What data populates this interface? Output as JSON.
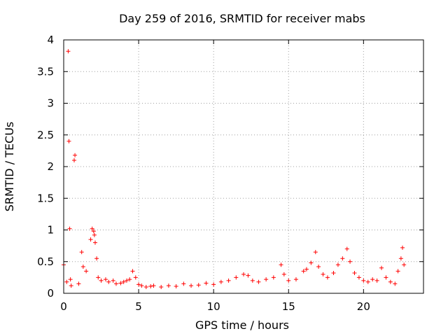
{
  "chart_data": {
    "type": "scatter",
    "title": "Day 259 of 2016, SRMTID for receiver mabs",
    "xlabel": "GPS time / hours",
    "ylabel": "SRMTID / TECUs",
    "xlim": [
      0,
      24
    ],
    "ylim": [
      0,
      4
    ],
    "x_ticks": [
      "0",
      "5",
      "10",
      "15",
      "20"
    ],
    "y_ticks": [
      "0",
      "0.5",
      "1",
      "1.5",
      "2",
      "2.5",
      "3",
      "3.5",
      "4"
    ],
    "grid": true,
    "marker": "+",
    "colors": {
      "series": "#ff0000",
      "grid": "#a0a0a0",
      "axis": "#000000"
    },
    "series": [
      {
        "name": "SRMTID",
        "x": [
          0.0,
          0.2,
          0.3,
          0.35,
          0.4,
          0.45,
          0.5,
          0.7,
          0.75,
          1.0,
          1.2,
          1.3,
          1.5,
          1.8,
          1.9,
          2.0,
          2.05,
          2.1,
          2.2,
          2.3,
          2.5,
          2.8,
          3.0,
          3.3,
          3.5,
          3.8,
          4.0,
          4.2,
          4.4,
          4.6,
          4.8,
          5.0,
          5.2,
          5.5,
          5.8,
          6.0,
          6.5,
          7.0,
          7.5,
          8.0,
          8.5,
          9.0,
          9.5,
          10.0,
          10.5,
          11.0,
          11.5,
          12.0,
          12.3,
          12.6,
          13.0,
          13.5,
          14.0,
          14.5,
          14.7,
          15.0,
          15.5,
          16.0,
          16.2,
          16.5,
          16.8,
          17.0,
          17.3,
          17.6,
          18.0,
          18.3,
          18.6,
          18.9,
          19.1,
          19.4,
          19.7,
          20.0,
          20.3,
          20.6,
          20.9,
          21.2,
          21.5,
          21.8,
          22.1,
          22.3,
          22.5,
          22.6,
          22.7
        ],
        "y": [
          0.45,
          0.18,
          3.82,
          2.4,
          1.02,
          0.22,
          0.12,
          2.1,
          2.18,
          0.15,
          0.65,
          0.42,
          0.35,
          0.85,
          1.02,
          0.98,
          0.92,
          0.8,
          0.55,
          0.25,
          0.2,
          0.22,
          0.18,
          0.2,
          0.15,
          0.16,
          0.18,
          0.2,
          0.22,
          0.35,
          0.25,
          0.14,
          0.12,
          0.1,
          0.11,
          0.12,
          0.1,
          0.12,
          0.11,
          0.15,
          0.12,
          0.13,
          0.16,
          0.14,
          0.18,
          0.2,
          0.25,
          0.3,
          0.28,
          0.2,
          0.18,
          0.22,
          0.25,
          0.45,
          0.3,
          0.2,
          0.22,
          0.35,
          0.38,
          0.48,
          0.65,
          0.42,
          0.3,
          0.25,
          0.32,
          0.45,
          0.55,
          0.7,
          0.5,
          0.32,
          0.25,
          0.2,
          0.18,
          0.22,
          0.2,
          0.4,
          0.25,
          0.18,
          0.15,
          0.35,
          0.55,
          0.72,
          0.45
        ]
      }
    ]
  }
}
